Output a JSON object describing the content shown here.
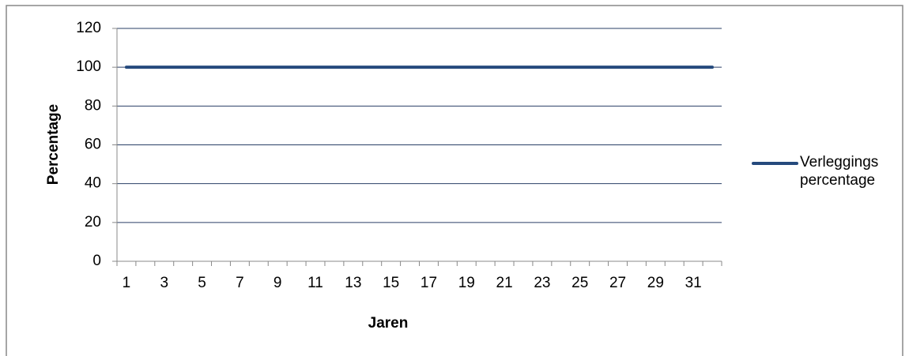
{
  "chart_data": {
    "type": "line",
    "x_label": "Jaren",
    "y_label": "Percentage",
    "categories": [
      1,
      null,
      3,
      null,
      5,
      null,
      7,
      null,
      9,
      null,
      11,
      null,
      13,
      null,
      15,
      null,
      17,
      null,
      19,
      null,
      21,
      null,
      23,
      null,
      25,
      null,
      27,
      null,
      29,
      null,
      31,
      null
    ],
    "series": [
      {
        "name": "Verleggings percentage",
        "color": "#254a7d",
        "values": [
          100,
          100,
          100,
          100,
          100,
          100,
          100,
          100,
          100,
          100,
          100,
          100,
          100,
          100,
          100,
          100,
          100,
          100,
          100,
          100,
          100,
          100,
          100,
          100,
          100,
          100,
          100,
          100,
          100,
          100,
          100,
          100
        ]
      }
    ],
    "ylim": [
      0,
      120
    ],
    "yticks": [
      0,
      20,
      40,
      60,
      80,
      100,
      120
    ],
    "grid": true,
    "legend": "right"
  }
}
